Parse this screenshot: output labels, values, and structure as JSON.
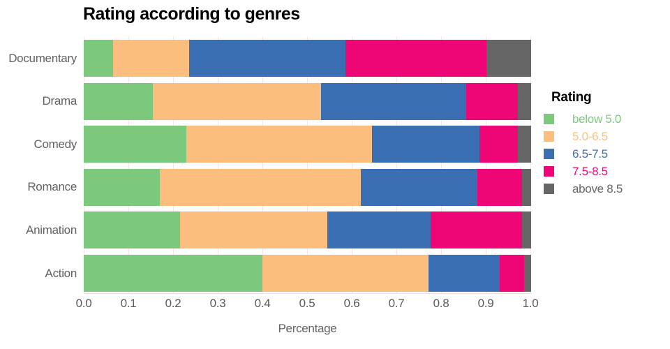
{
  "title": "Rating according to genres",
  "xaxis": {
    "label": "Percentage",
    "tick_labels": [
      "0.0",
      "0.1",
      "0.2",
      "0.3",
      "0.4",
      "0.5",
      "0.6",
      "0.7",
      "0.8",
      "0.9",
      "1.0"
    ],
    "tick_values": [
      0.0,
      0.1,
      0.2,
      0.3,
      0.4,
      0.5,
      0.6,
      0.7,
      0.8,
      0.9,
      1.0
    ]
  },
  "legend": {
    "title": "Rating"
  },
  "colors": {
    "below_5": "#7CC87D",
    "5_to_6_5": "#FCBE7E",
    "6_5_to_7_5": "#3A6FB3",
    "7_5_to_8_5": "#EE0677",
    "above_8_5": "#666666",
    "gridline": "#f8e4e7",
    "axis_text": "#606164",
    "title_text": "#000000"
  },
  "chart_data": {
    "type": "bar",
    "orientation": "horizontal",
    "stacked": true,
    "title": "Rating according to genres",
    "xlabel": "Percentage",
    "ylabel": "",
    "xlim": [
      0,
      1.0
    ],
    "grid": true,
    "legend_position": "right",
    "legend_title": "Rating",
    "categories": [
      "Documentary",
      "Drama",
      "Comedy",
      "Romance",
      "Animation",
      "Action"
    ],
    "series": [
      {
        "name": "below 5.0",
        "color": "#7CC87D",
        "values": [
          0.065,
          0.155,
          0.23,
          0.17,
          0.215,
          0.4
        ]
      },
      {
        "name": "5.0-6.5",
        "color": "#FCBE7E",
        "values": [
          0.17,
          0.375,
          0.415,
          0.45,
          0.33,
          0.37
        ]
      },
      {
        "name": "6.5-7.5",
        "color": "#3A6FB3",
        "values": [
          0.35,
          0.325,
          0.24,
          0.26,
          0.23,
          0.16
        ]
      },
      {
        "name": "7.5-8.5",
        "color": "#EE0677",
        "values": [
          0.315,
          0.115,
          0.085,
          0.1,
          0.205,
          0.055
        ]
      },
      {
        "name": "above 8.5",
        "color": "#666666",
        "values": [
          0.1,
          0.03,
          0.03,
          0.02,
          0.02,
          0.015
        ]
      }
    ]
  }
}
